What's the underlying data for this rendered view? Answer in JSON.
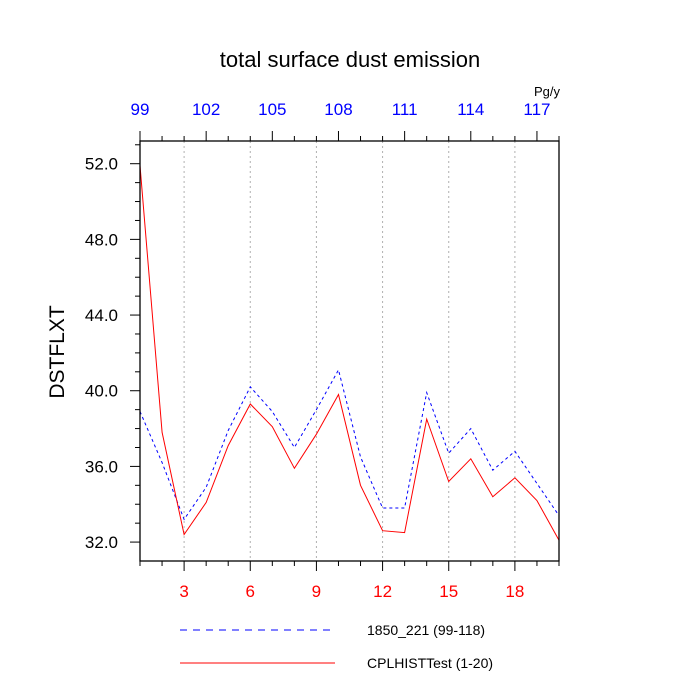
{
  "chart_data": {
    "type": "line",
    "title": "total surface dust emission",
    "units": "Pg/y",
    "ylabel": "DSTFLXT",
    "xlabel": "",
    "ylim": [
      31.0,
      53.2
    ],
    "yticks": [
      32.0,
      36.0,
      40.0,
      44.0,
      48.0,
      52.0
    ],
    "ytick_labels": [
      "32.0",
      "36.0",
      "40.0",
      "44.0",
      "48.0",
      "52.0"
    ],
    "grid": "vertical dotted at bottom-axis major ticks",
    "bottom_axis": {
      "color": "#ff0000",
      "range": [
        1,
        20
      ],
      "ticks": [
        3,
        6,
        9,
        12,
        15,
        18
      ],
      "tick_labels": [
        "3",
        "6",
        "9",
        "12",
        "15",
        "18"
      ]
    },
    "top_axis": {
      "color": "#0000ff",
      "range": [
        99,
        118
      ],
      "ticks": [
        99,
        102,
        105,
        108,
        111,
        114,
        117
      ],
      "tick_labels": [
        "99",
        "102",
        "105",
        "108",
        "111",
        "114",
        "117"
      ]
    },
    "x": [
      1,
      2,
      3,
      4,
      5,
      6,
      7,
      8,
      9,
      10,
      11,
      12,
      13,
      14,
      15,
      16,
      17,
      18,
      19,
      20
    ],
    "series": [
      {
        "name": "1850_221 (99-118)",
        "color": "#0000ff",
        "style": "dashed",
        "values": [
          38.9,
          36.2,
          33.2,
          34.9,
          37.9,
          40.2,
          38.9,
          37.0,
          39.0,
          41.1,
          36.5,
          33.8,
          33.8,
          39.9,
          36.7,
          38.0,
          35.8,
          36.8,
          35.1,
          33.4
        ]
      },
      {
        "name": "CPLHISTTest (1-20)",
        "color": "#ff0000",
        "style": "solid",
        "values": [
          51.9,
          37.8,
          32.4,
          34.1,
          37.1,
          39.3,
          38.1,
          35.9,
          37.7,
          39.8,
          35.0,
          32.6,
          32.5,
          38.5,
          35.2,
          36.4,
          34.4,
          35.4,
          34.2,
          32.1
        ]
      }
    ],
    "legend": {
      "placement": "bottom",
      "entries": [
        "1850_221 (99-118)",
        "CPLHISTTest (1-20)"
      ]
    }
  }
}
